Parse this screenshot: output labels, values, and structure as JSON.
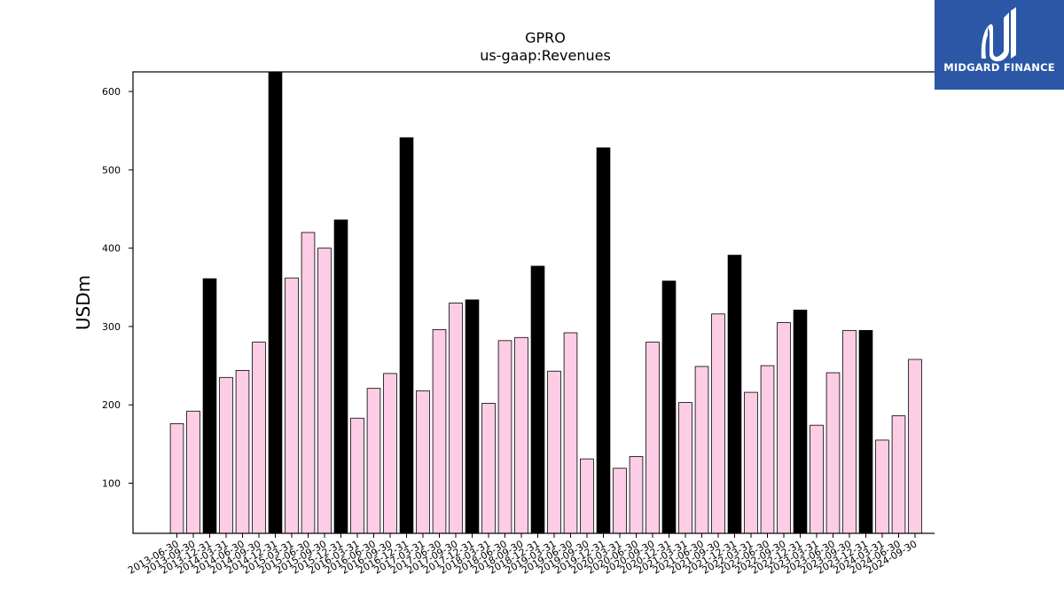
{
  "brand": {
    "name": "MIDGARD FINANCE",
    "color": "#2c57a6"
  },
  "chart_data": {
    "type": "bar",
    "title": "GPRO",
    "subtitle": "us-gaap:Revenues",
    "xlabel": "",
    "ylabel": "USDm",
    "ylim": [
      36,
      625
    ],
    "yticks": [
      100,
      200,
      300,
      400,
      500,
      600
    ],
    "grid": false,
    "colors": {
      "quarter": "#fccde5",
      "annual": "#000000",
      "edge": "#000000"
    },
    "categories": [
      "2013-06-30",
      "2013-09-30",
      "2013-12-31",
      "2014-03-31",
      "2014-06-30",
      "2014-09-30",
      "2014-12-31",
      "2015-03-31",
      "2015-06-30",
      "2015-09-30",
      "2015-12-31",
      "2016-03-31",
      "2016-06-30",
      "2016-09-30",
      "2016-12-31",
      "2017-03-31",
      "2017-06-30",
      "2017-09-30",
      "2017-12-31",
      "2018-03-31",
      "2018-06-30",
      "2018-09-30",
      "2018-12-31",
      "2019-03-31",
      "2019-06-30",
      "2019-09-30",
      "2019-12-31",
      "2020-03-31",
      "2020-06-30",
      "2020-09-30",
      "2020-12-31",
      "2021-03-31",
      "2021-06-30",
      "2021-09-30",
      "2021-12-31",
      "2022-03-31",
      "2022-06-30",
      "2022-09-30",
      "2022-12-31",
      "2023-03-31",
      "2023-06-30",
      "2023-09-30",
      "2023-12-31",
      "2024-03-31",
      "2024-06-30",
      "2024-09-30"
    ],
    "values": [
      176,
      192,
      361,
      235,
      244,
      280,
      634,
      362,
      420,
      400,
      436,
      183,
      221,
      240,
      541,
      218,
      296,
      330,
      334,
      202,
      282,
      286,
      377,
      243,
      292,
      131,
      528,
      119,
      134,
      280,
      358,
      203,
      249,
      316,
      391,
      216,
      250,
      305,
      321,
      174,
      241,
      295,
      295,
      155,
      186,
      258
    ],
    "series_kind": [
      "q",
      "q",
      "a",
      "q",
      "q",
      "q",
      "a",
      "q",
      "q",
      "q",
      "a",
      "q",
      "q",
      "q",
      "a",
      "q",
      "q",
      "q",
      "a",
      "q",
      "q",
      "q",
      "a",
      "q",
      "q",
      "q",
      "a",
      "q",
      "q",
      "q",
      "a",
      "q",
      "q",
      "q",
      "a",
      "q",
      "q",
      "q",
      "a",
      "q",
      "q",
      "q",
      "a",
      "q",
      "q",
      "q"
    ]
  }
}
